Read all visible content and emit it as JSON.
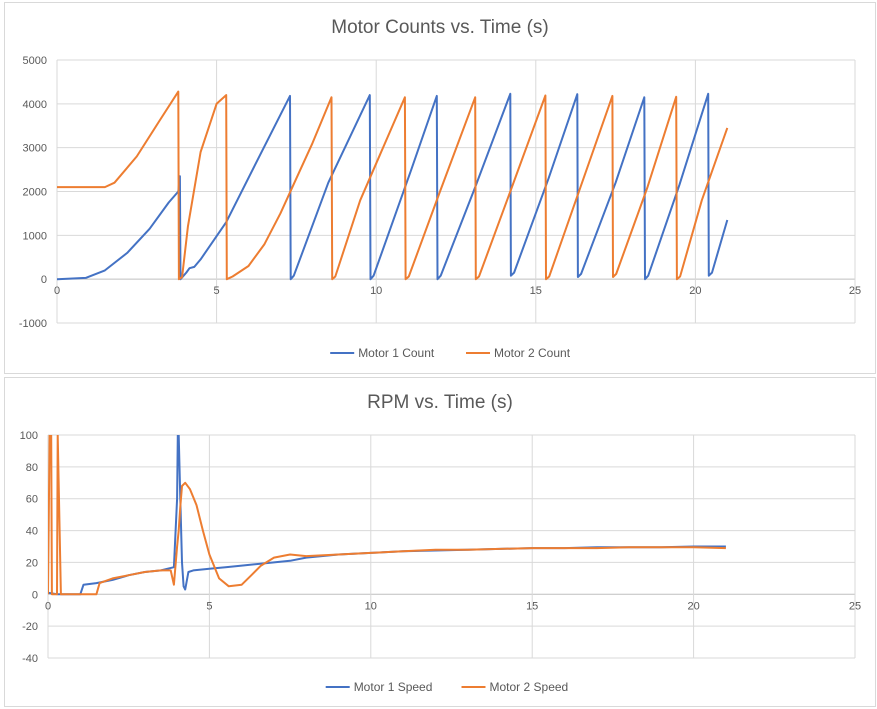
{
  "colors": {
    "series1": "#4472c4",
    "series2": "#ed7d31",
    "grid": "#d9d9d9",
    "axis": "#bfbfbf",
    "text": "#595959"
  },
  "chart_data": [
    {
      "type": "line",
      "title": "Motor Counts vs. Time (s)",
      "xlabel": "",
      "ylabel": "",
      "xlim": [
        0,
        25
      ],
      "ylim": [
        -1000,
        5000
      ],
      "xticks": [
        0,
        5,
        10,
        15,
        20,
        25
      ],
      "yticks": [
        -1000,
        0,
        1000,
        2000,
        3000,
        4000,
        5000
      ],
      "grid": true,
      "legend": "bottom",
      "series": [
        {
          "name": "Motor 1 Count",
          "color": "#4472c4",
          "x": [
            0,
            0.9,
            1.5,
            2.2,
            2.9,
            3.5,
            3.8,
            3.85,
            3.87,
            4.05,
            4.15,
            4.3,
            4.5,
            5.3,
            6.2,
            7.3,
            7.32,
            7.42,
            8.5,
            9.8,
            9.82,
            9.92,
            11.1,
            11.9,
            11.92,
            12.02,
            13.1,
            14.2,
            14.22,
            14.32,
            15.4,
            16.3,
            16.32,
            16.42,
            17.5,
            18.4,
            18.42,
            18.52,
            19.5,
            20.4,
            20.42,
            20.52,
            21.0
          ],
          "y": [
            0,
            30,
            200,
            600,
            1150,
            1750,
            2000,
            2350,
            0,
            150,
            250,
            280,
            450,
            1300,
            2600,
            4180,
            0,
            80,
            2200,
            4200,
            0,
            80,
            2500,
            4180,
            0,
            80,
            2100,
            4230,
            80,
            150,
            2300,
            4220,
            50,
            120,
            2200,
            4150,
            0,
            80,
            2150,
            4230,
            80,
            150,
            1350
          ]
        },
        {
          "name": "Motor 2 Count",
          "color": "#ed7d31",
          "x": [
            0,
            1.5,
            1.8,
            2.5,
            3.2,
            3.8,
            3.82,
            3.92,
            4.1,
            4.5,
            5.0,
            5.3,
            5.32,
            5.5,
            6.0,
            6.5,
            7.0,
            7.5,
            8.0,
            8.6,
            8.62,
            8.72,
            9.5,
            10.9,
            10.92,
            11.02,
            12.0,
            13.1,
            13.12,
            13.22,
            14.2,
            15.3,
            15.32,
            15.42,
            16.4,
            17.4,
            17.42,
            17.52,
            18.5,
            19.4,
            19.42,
            19.52,
            20.2,
            21.0
          ],
          "y": [
            2100,
            2100,
            2200,
            2800,
            3600,
            4280,
            0,
            50,
            1200,
            2900,
            4000,
            4200,
            0,
            60,
            300,
            800,
            1500,
            2300,
            3100,
            4150,
            0,
            60,
            1800,
            4150,
            0,
            60,
            2000,
            4150,
            0,
            60,
            2000,
            4190,
            0,
            60,
            2100,
            4180,
            50,
            120,
            2100,
            4160,
            0,
            60,
            1800,
            3450
          ]
        }
      ]
    },
    {
      "type": "line",
      "title": "RPM vs. Time (s)",
      "xlabel": "",
      "ylabel": "",
      "xlim": [
        0,
        25
      ],
      "ylim": [
        -40,
        100
      ],
      "xticks": [
        0,
        5,
        10,
        15,
        20,
        25
      ],
      "yticks": [
        -40,
        -20,
        0,
        20,
        40,
        60,
        80,
        100
      ],
      "grid": true,
      "legend": "bottom",
      "series": [
        {
          "name": "Motor 1 Speed",
          "color": "#4472c4",
          "x": [
            0,
            0.3,
            1.0,
            1.1,
            1.5,
            2.0,
            2.5,
            3.0,
            3.5,
            3.9,
            4.0,
            4.02,
            4.05,
            4.1,
            4.15,
            4.2,
            4.25,
            4.35,
            4.5,
            5.0,
            5.5,
            6.0,
            7.0,
            7.5,
            8.0,
            9.0,
            10.0,
            11.0,
            12.0,
            13.0,
            14.0,
            15.0,
            16.0,
            17.0,
            18.0,
            19.0,
            20.0,
            21.0
          ],
          "y": [
            1,
            0,
            0,
            6,
            7,
            9,
            12,
            14,
            15,
            17,
            60,
            100,
            100,
            60,
            20,
            5,
            3,
            14,
            15,
            16,
            17,
            18,
            20,
            21,
            23,
            25,
            26,
            27,
            27.5,
            28,
            28.5,
            29,
            29,
            29.5,
            29.5,
            29.5,
            30,
            30
          ]
        },
        {
          "name": "Motor 2 Speed",
          "color": "#ed7d31",
          "x": [
            0,
            0.05,
            0.1,
            0.12,
            0.28,
            0.3,
            0.4,
            1.0,
            1.5,
            1.6,
            2.0,
            2.5,
            3.0,
            3.5,
            3.8,
            3.9,
            4.0,
            4.05,
            4.1,
            4.15,
            4.25,
            4.4,
            4.6,
            4.8,
            5.0,
            5.3,
            5.6,
            6.0,
            6.3,
            6.6,
            7.0,
            7.5,
            8.0,
            9.0,
            10.0,
            11.0,
            12.0,
            13.0,
            14.0,
            15.0,
            16.0,
            17.0,
            18.0,
            19.0,
            20.0,
            21.0
          ],
          "y": [
            0,
            100,
            100,
            0,
            0,
            100,
            0,
            0,
            0,
            7,
            10,
            12,
            14,
            15,
            15,
            6,
            30,
            40,
            55,
            68,
            70,
            66,
            56,
            40,
            25,
            10,
            5,
            6,
            12,
            18,
            23,
            25,
            24,
            25,
            26,
            27,
            28,
            28,
            28.5,
            29,
            29,
            29,
            29.5,
            29.5,
            29.5,
            29
          ]
        }
      ]
    }
  ]
}
